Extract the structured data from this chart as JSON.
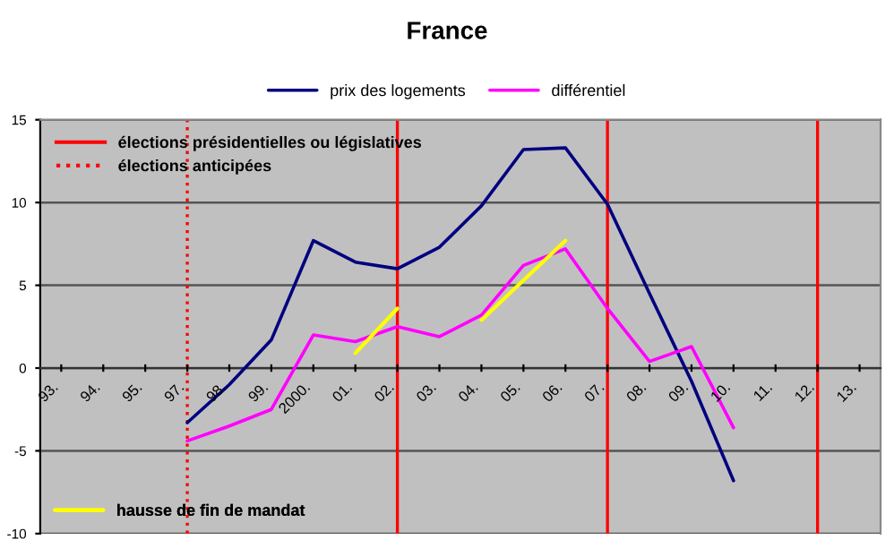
{
  "chart_data": {
    "type": "line",
    "title": "France",
    "categories": [
      "93.",
      "94.",
      "95.",
      "97.",
      "98.",
      "99.",
      "2000.",
      "01.",
      "02.",
      "03.",
      "04.",
      "05.",
      "06.",
      "07.",
      "08.",
      "09.",
      "10.",
      "11.",
      "12.",
      "13."
    ],
    "series": [
      {
        "name": "prix des logements",
        "color": "#000080",
        "values": [
          null,
          null,
          null,
          -3.3,
          -1.0,
          1.7,
          7.7,
          6.4,
          6.0,
          7.3,
          9.8,
          13.2,
          13.3,
          9.9,
          4.5,
          -0.8,
          -6.8,
          null,
          null,
          null
        ]
      },
      {
        "name": "différentiel",
        "color": "#ff00ff",
        "values": [
          null,
          null,
          null,
          -4.4,
          -3.5,
          -2.5,
          2.0,
          1.6,
          2.5,
          1.9,
          3.2,
          6.2,
          7.2,
          3.6,
          0.4,
          1.3,
          -3.6,
          null,
          null,
          null
        ]
      },
      {
        "name": "hausse de fin de mandat",
        "type": "line",
        "color": "#ffff00",
        "values": [
          null,
          null,
          null,
          null,
          null,
          null,
          null,
          0.9,
          3.6,
          null,
          null,
          null,
          null,
          null,
          null,
          null,
          null,
          null,
          null,
          null
        ]
      },
      {
        "type": "line",
        "color": "#ffff00",
        "values": [
          null,
          null,
          null,
          null,
          null,
          null,
          null,
          null,
          null,
          null,
          2.9,
          5.3,
          7.7,
          null,
          null,
          null,
          null,
          null,
          null,
          null
        ]
      }
    ],
    "ref_lines": [
      {
        "axis": "x",
        "value": "02.",
        "label": "élections présidentielles ou législatives",
        "color": "#ff0000",
        "line_style": "solid"
      },
      {
        "axis": "x",
        "value": "97.",
        "label": "élections anticipées",
        "color": "#ff0000",
        "line_style": "dotted"
      },
      {
        "axis": "x",
        "value": "07.",
        "label": null,
        "color": "#ff0000",
        "line_style": "solid"
      },
      {
        "axis": "x",
        "value": "12.",
        "label": null,
        "color": "#ff0000",
        "line_style": "solid"
      }
    ],
    "ylim": [
      -10,
      15
    ],
    "yticks": [
      -10,
      -5,
      0,
      5,
      10,
      15
    ],
    "grid": "y",
    "legend": "top",
    "marker": "none"
  }
}
